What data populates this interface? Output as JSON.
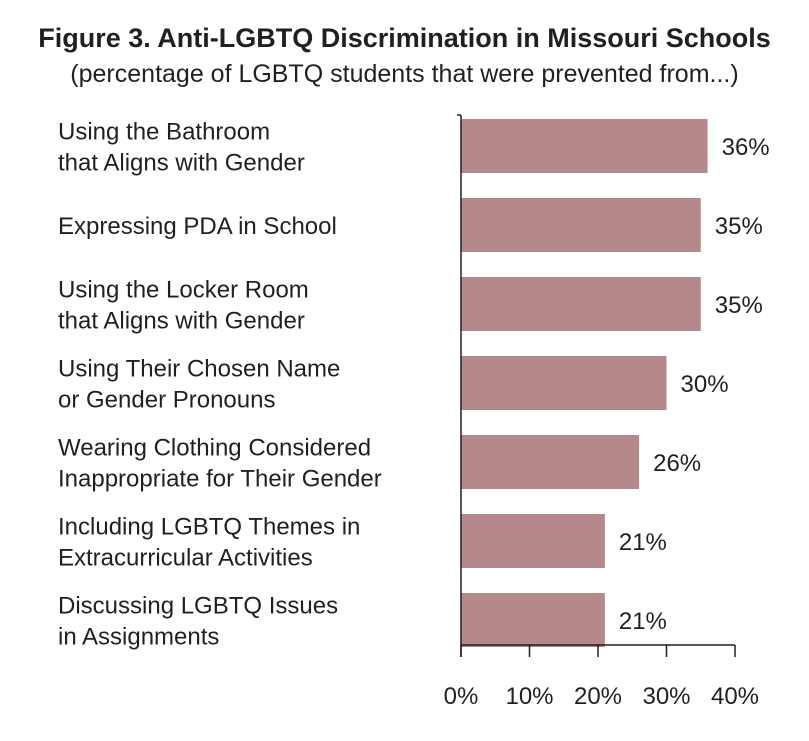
{
  "title": "Figure 3. Anti-LGBTQ Discrimination in Missouri Schools",
  "subtitle": "(percentage of LGBTQ students that were prevented from...)",
  "colors": {
    "bar": "#b5898b",
    "axis": "#231f20",
    "text": "#231f20"
  },
  "chart_data": {
    "type": "bar",
    "orientation": "horizontal",
    "title": "Figure 3. Anti-LGBTQ Discrimination in Missouri Schools",
    "subtitle": "(percentage of LGBTQ students that were prevented from...)",
    "categories": [
      [
        "Using the Bathroom",
        "that Aligns with Gender"
      ],
      [
        "Expressing PDA in School"
      ],
      [
        "Using the Locker Room",
        "that Aligns with Gender"
      ],
      [
        "Using Their Chosen Name",
        "or Gender Pronouns"
      ],
      [
        "Wearing Clothing Considered",
        "Inappropriate for Their Gender"
      ],
      [
        "Including LGBTQ Themes in",
        "Extracurricular Activities"
      ],
      [
        "Discussing LGBTQ Issues",
        "in Assignments"
      ]
    ],
    "values": [
      36,
      35,
      35,
      30,
      26,
      21,
      21
    ],
    "value_labels": [
      "36%",
      "35%",
      "35%",
      "30%",
      "26%",
      "21%",
      "21%"
    ],
    "xlim": [
      0,
      40
    ],
    "xticks": [
      0,
      10,
      20,
      30,
      40
    ],
    "xtick_labels": [
      "0%",
      "10%",
      "20%",
      "30%",
      "40%"
    ],
    "xlabel": "",
    "ylabel": "",
    "grid": false,
    "legend": "none"
  }
}
